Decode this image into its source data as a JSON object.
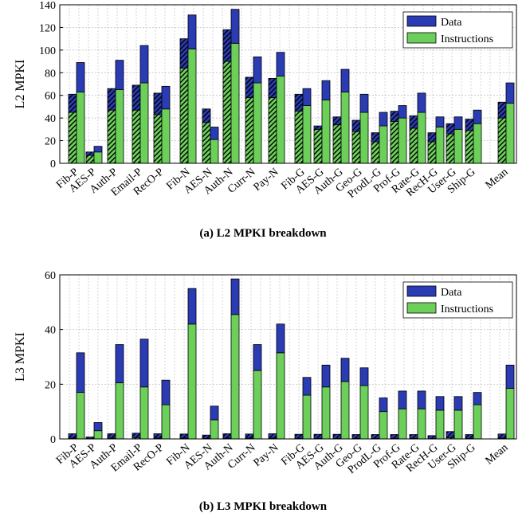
{
  "colors": {
    "data": "#2a3bb3",
    "instructions": "#6ccf5a",
    "grid": "#b9b9b9",
    "axis": "#000000"
  },
  "chart_data": [
    {
      "type": "bar",
      "caption": "(a) L2 MPKI breakdown",
      "ylabel": "L2 MPKI",
      "xlabel": "",
      "ylim": [
        0,
        140
      ],
      "yticks": [
        0,
        20,
        40,
        60,
        80,
        100,
        120,
        140
      ],
      "legend": {
        "position": "top-right",
        "entries": [
          "Data",
          "Instructions"
        ]
      },
      "grid": true,
      "categories": [
        "Fib-P",
        "AES-P",
        "Auth-P",
        "Email-P",
        "RecO-P",
        "Fib-N",
        "AES-N",
        "Auth-N",
        "Curr-N",
        "Pay-N",
        "Fib-G",
        "AES-G",
        "Auth-G",
        "Geo-G",
        "ProdL-G",
        "Prof-G",
        "Rate-G",
        "RecH-G",
        "User-G",
        "Ship-G",
        "Mean"
      ],
      "bar_styles": [
        "hatched",
        "solid"
      ],
      "series": [
        {
          "name": "Instructions",
          "values": [
            [
              45,
              63
            ],
            [
              7,
              10
            ],
            [
              47,
              65
            ],
            [
              47,
              71
            ],
            [
              43,
              48
            ],
            [
              84,
              101
            ],
            [
              36,
              21
            ],
            [
              90,
              106
            ],
            [
              58,
              71
            ],
            [
              58,
              77
            ],
            [
              46,
              51
            ],
            [
              30,
              56
            ],
            [
              34,
              63
            ],
            [
              28,
              45
            ],
            [
              19,
              33
            ],
            [
              37,
              40
            ],
            [
              31,
              45
            ],
            [
              19,
              32
            ],
            [
              26,
              30
            ],
            [
              29,
              35
            ],
            [
              40,
              53
            ]
          ]
        },
        {
          "name": "Data",
          "values": [
            [
              16,
              26
            ],
            [
              3,
              5
            ],
            [
              19,
              26
            ],
            [
              22,
              33
            ],
            [
              19,
              20
            ],
            [
              26,
              30
            ],
            [
              12,
              11
            ],
            [
              28,
              30
            ],
            [
              18,
              23
            ],
            [
              17,
              21
            ],
            [
              15,
              15
            ],
            [
              3,
              17
            ],
            [
              7,
              20
            ],
            [
              10,
              16
            ],
            [
              8,
              12
            ],
            [
              9,
              11
            ],
            [
              11,
              17
            ],
            [
              8,
              9
            ],
            [
              9,
              11
            ],
            [
              10,
              12
            ],
            [
              14,
              18
            ]
          ]
        }
      ]
    },
    {
      "type": "bar",
      "caption": "(b) L3 MPKI breakdown",
      "ylabel": "L3 MPKI",
      "xlabel": "",
      "ylim": [
        0,
        60
      ],
      "yticks": [
        0,
        20,
        40,
        60
      ],
      "legend": {
        "position": "top-right",
        "entries": [
          "Data",
          "Instructions"
        ]
      },
      "grid": true,
      "categories": [
        "Fib-P",
        "AES-P",
        "Auth-P",
        "Email-P",
        "RecO-P",
        "Fib-N",
        "AES-N",
        "Auth-N",
        "Curr-N",
        "Pay-N",
        "Fib-G",
        "AES-G",
        "Auth-G",
        "Geo-G",
        "ProdL-G",
        "Prof-G",
        "Rate-G",
        "RecH-G",
        "User-G",
        "Ship-G",
        "Mean"
      ],
      "bar_styles": [
        "hatched",
        "solid"
      ],
      "series": [
        {
          "name": "Instructions",
          "values": [
            [
              0.3,
              17
            ],
            [
              0.1,
              3
            ],
            [
              0.3,
              20.5
            ],
            [
              0.4,
              19
            ],
            [
              0.3,
              12.5
            ],
            [
              0.3,
              42
            ],
            [
              0.2,
              7
            ],
            [
              0.3,
              45.5
            ],
            [
              0.3,
              25
            ],
            [
              0.3,
              31.5
            ],
            [
              0.2,
              16
            ],
            [
              0.2,
              19
            ],
            [
              0.2,
              21
            ],
            [
              0.2,
              19.5
            ],
            [
              0.2,
              10
            ],
            [
              0.2,
              11
            ],
            [
              0.2,
              11
            ],
            [
              0.1,
              10.5
            ],
            [
              0.4,
              10.5
            ],
            [
              0.2,
              12.5
            ],
            [
              0.3,
              18.5
            ]
          ]
        },
        {
          "name": "Data",
          "values": [
            [
              1.6,
              14.5
            ],
            [
              0.6,
              3
            ],
            [
              1.6,
              14
            ],
            [
              1.7,
              17.5
            ],
            [
              1.6,
              9
            ],
            [
              1.5,
              13
            ],
            [
              1.2,
              5
            ],
            [
              1.6,
              13
            ],
            [
              1.5,
              9.5
            ],
            [
              1.6,
              10.5
            ],
            [
              1.5,
              6.5
            ],
            [
              1.5,
              8
            ],
            [
              1.5,
              8.5
            ],
            [
              1.4,
              6.5
            ],
            [
              1.4,
              5
            ],
            [
              1.4,
              6.5
            ],
            [
              1.4,
              6.5
            ],
            [
              1.1,
              5
            ],
            [
              2.3,
              5
            ],
            [
              1.4,
              4.5
            ],
            [
              1.5,
              8.5
            ]
          ]
        }
      ]
    }
  ]
}
